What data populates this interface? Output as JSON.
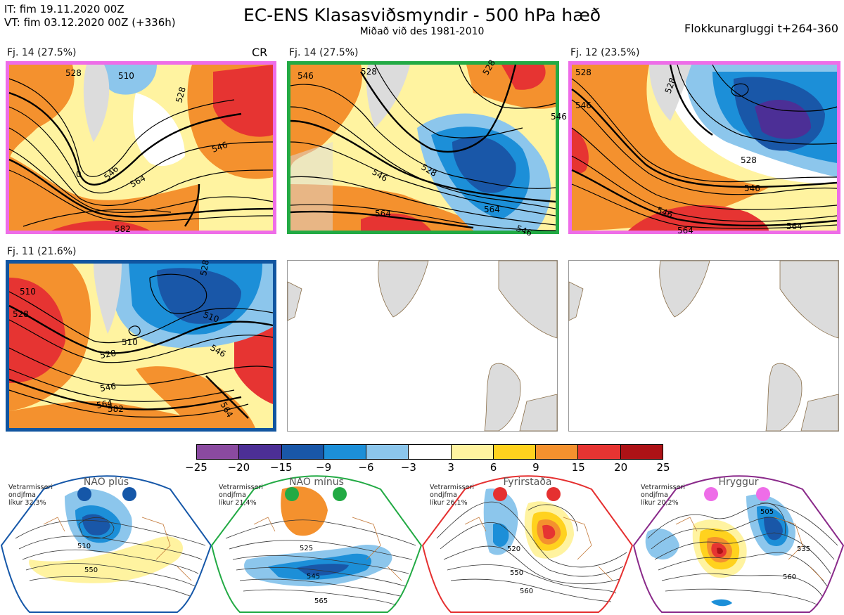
{
  "header": {
    "it_line": "IT: fim 19.11.2020 00Z",
    "vt_line": "VT: fim 03.12.2020 00Z  (+336h)",
    "title": "EC-ENS Klasasviðsmyndir - 500 hPa hæð",
    "subtitle": "Miðað við des 1981-2010",
    "window": "Flokkunargluggi t+264-360"
  },
  "panels": [
    {
      "label": "Fj. 14 (27.5%)",
      "badge": "CR",
      "border_color": "#ee6de8",
      "contours": [
        "528",
        "510",
        "528",
        "546",
        "546",
        "564",
        "582",
        "0"
      ]
    },
    {
      "label": "Fj. 14 (27.5%)",
      "border_color": "#22aa44",
      "contours": [
        "546",
        "528",
        "528",
        "546",
        "528",
        "546",
        "564",
        "564",
        "546"
      ]
    },
    {
      "label": "Fj. 12 (23.5%)",
      "border_color": "#ee6de8",
      "contours": [
        "528",
        "546",
        "528",
        "528",
        "546",
        "546",
        "564",
        "564"
      ]
    },
    {
      "label": "Fj. 11 (21.6%)",
      "border_color": "#1155a0",
      "contours": [
        "510",
        "528",
        "510",
        "528",
        "510",
        "528",
        "546",
        "546",
        "564",
        "582",
        "564"
      ]
    },
    {
      "label": "",
      "border_color": "#999999",
      "contours": []
    },
    {
      "label": "",
      "border_color": "#999999",
      "contours": []
    }
  ],
  "colorbar": {
    "ticks": [
      "−25",
      "−20",
      "−15",
      "−9",
      "−6",
      "−3",
      "3",
      "6",
      "9",
      "15",
      "20",
      "25"
    ],
    "colors": [
      "#8a4aa0",
      "#4c2f96",
      "#1957a8",
      "#1c8fd8",
      "#8cc6ec",
      "#ffffff",
      "#fff3a0",
      "#ffd21e",
      "#f4912e",
      "#e63432",
      "#ad1216"
    ]
  },
  "regimes": [
    {
      "title": "NAO plús",
      "note": [
        "Vetrarmisseri",
        "ondjfma",
        "líkur 32,3%"
      ],
      "color": "#1557a8",
      "contours": [
        "510",
        "550"
      ]
    },
    {
      "title": "NAO mínus",
      "note": [
        "Vetrarmisseri",
        "ondjfma",
        "líkur 21,4%"
      ],
      "color": "#22aa44",
      "contours": [
        "525",
        "545",
        "565"
      ]
    },
    {
      "title": "Fyrirstaða",
      "note": [
        "Vetrarmisseri",
        "ondjfma",
        "líkur 26,1%"
      ],
      "color": "#e53030",
      "contours": [
        "520",
        "550",
        "560"
      ]
    },
    {
      "title": "Hryggur",
      "note": [
        "Vetrarmisseri",
        "ondjfma",
        "líkur 20,2%"
      ],
      "color": "#ee6de8",
      "contours": [
        "505",
        "535",
        "560"
      ]
    }
  ]
}
